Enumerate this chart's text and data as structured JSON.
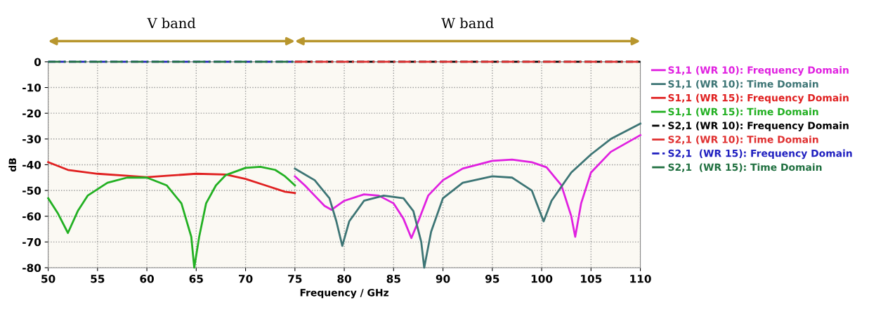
{
  "chart_data": {
    "type": "line",
    "xlabel": "Frequency / GHz",
    "ylabel": "dB",
    "xlim": [
      50,
      110
    ],
    "xticks": [
      50,
      55,
      60,
      65,
      70,
      75,
      80,
      85,
      90,
      95,
      100,
      105,
      110
    ],
    "ylim": [
      -80,
      0
    ],
    "yticks": [
      -80,
      -70,
      -60,
      -50,
      -40,
      -30,
      -20,
      -10,
      0
    ],
    "grid": true,
    "legend": "right",
    "line_style": "solid",
    "marker": "none",
    "bands": [
      {
        "axis": "x",
        "from": 50,
        "to": 75,
        "label": "V band",
        "color": "#b8962e"
      },
      {
        "axis": "x",
        "from": 75,
        "to": 110,
        "label": "W band",
        "color": "#b8962e"
      }
    ],
    "series": [
      {
        "name": "S1,1 (WR 10): Frequency Domain",
        "color": "#e020e0",
        "x": [
          75,
          76,
          77,
          78,
          78.7,
          80,
          82,
          83.5,
          85,
          86,
          86.8,
          87.5,
          88.5,
          90,
          92,
          95,
          97,
          99,
          100.5,
          102,
          103,
          103.4,
          104,
          105,
          107,
          110
        ],
        "values": [
          -44.5,
          -48,
          -52,
          -56,
          -57.5,
          -54,
          -51.5,
          -52,
          -55,
          -61,
          -68.5,
          -62,
          -52,
          -46,
          -41.5,
          -38.5,
          -38,
          -39,
          -41,
          -48,
          -60,
          -68,
          -55,
          -43,
          -35,
          -28.5
        ]
      },
      {
        "name": "S1,1 (WR 10): Time Domain",
        "color": "#3d7575",
        "x": [
          75,
          77,
          78.5,
          79.2,
          79.8,
          80.5,
          82,
          84,
          86,
          87,
          87.8,
          88.1,
          88.8,
          90,
          92,
          95,
          97,
          99,
          100.2,
          101,
          103,
          105,
          107,
          110
        ],
        "values": [
          -41.5,
          -46,
          -53,
          -62,
          -71.5,
          -62,
          -54,
          -52,
          -53,
          -58,
          -70,
          -80,
          -66,
          -53,
          -47,
          -44.5,
          -45,
          -50,
          -62,
          -54,
          -43,
          -36,
          -30,
          -24
        ]
      },
      {
        "name": "S1,1 (WR 15): Frequency Domain",
        "color": "#e02020",
        "x": [
          50,
          52,
          55,
          58,
          60,
          62,
          65,
          68,
          70,
          72,
          74,
          75
        ],
        "values": [
          -39,
          -42,
          -43.5,
          -44.3,
          -44.8,
          -44.3,
          -43.5,
          -43.8,
          -45.5,
          -48,
          -50.5,
          -51
        ]
      },
      {
        "name": "S1,1 (WR 15): Time Domain",
        "color": "#22b022",
        "x": [
          50,
          51,
          52,
          53,
          54,
          56,
          58,
          60,
          62,
          63.5,
          64.5,
          64.8,
          65.3,
          66,
          67,
          68,
          70,
          71.5,
          73,
          74,
          75
        ],
        "values": [
          -53,
          -59,
          -66.5,
          -58,
          -52,
          -47,
          -45,
          -45,
          -48,
          -55,
          -68,
          -80,
          -68,
          -55,
          -48,
          -44,
          -41.2,
          -40.8,
          -42,
          -44.5,
          -48
        ]
      },
      {
        "name": "S2,1 (WR 10): Frequency Domain",
        "color": "#000000",
        "line_style": "dashed",
        "x": [
          75,
          110
        ],
        "values": [
          0,
          0
        ]
      },
      {
        "name": "S2,1 (WR 10): Time Domain",
        "color": "#e03030",
        "line_style": "dashdot",
        "x": [
          75,
          110
        ],
        "values": [
          0,
          0
        ]
      },
      {
        "name": "S2,1  (WR 15): Frequency Domain",
        "color": "#2020c0",
        "line_style": "dashed",
        "x": [
          50,
          75
        ],
        "values": [
          0,
          0
        ]
      },
      {
        "name": "S2,1  (WR 15): Time Domain",
        "color": "#207040",
        "line_style": "dashdot",
        "x": [
          50,
          75
        ],
        "values": [
          0,
          0
        ]
      }
    ]
  }
}
